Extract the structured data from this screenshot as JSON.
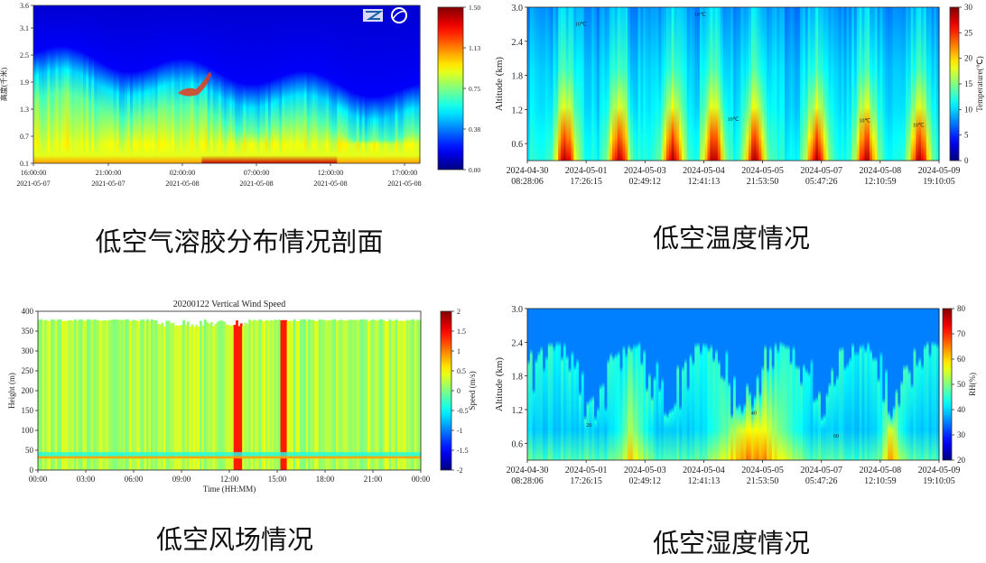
{
  "captions": {
    "aerosol": "低空气溶胶分布情况剖面",
    "temperature": "低空温度情况",
    "wind": "低空风场情况",
    "humidity": "低空湿度情况"
  },
  "chart_data": [
    {
      "id": "aerosol",
      "type": "heatmap",
      "title": "",
      "xlabel": "",
      "ylabel": "高度(千米)",
      "x_ticks": [
        "16:00:00\n2021-05-07",
        "21:00:00\n2021-05-07",
        "02:00:00\n2021-05-08",
        "07:00:00\n2021-05-08",
        "12:00:00\n2021-05-08",
        "17:00:00\n2021-05-08"
      ],
      "y_ticks": [
        "0.1",
        "0.7",
        "1.3",
        "1.9",
        "2.5",
        "3.1",
        "3.6"
      ],
      "ylim": [
        0.1,
        3.6
      ],
      "colorbar_ticks": [
        "0.00",
        "0.38",
        "0.75",
        "1.13",
        "1.50"
      ],
      "colorbar_range": [
        0,
        1.5
      ],
      "colormap": "jet",
      "logo_icon": "institute-logo-icon"
    },
    {
      "id": "temperature",
      "type": "heatmap",
      "title": "",
      "xlabel": "",
      "ylabel": "Altitude (km)",
      "x_ticks": [
        "2024-04-30\n08:28:06",
        "2024-05-01\n17:26:15",
        "2024-05-03\n02:49:12",
        "2024-05-04\n12:41:13",
        "2024-05-05\n21:53:50",
        "2024-05-07\n05:47:26",
        "2024-05-08\n12:10:59",
        "2024-05-09\n19:10:05"
      ],
      "y_ticks": [
        "0.6",
        "1.2",
        "1.8",
        "2.4",
        "3.0"
      ],
      "ylim": [
        0.3,
        3.0
      ],
      "colorbar_label": "Temperature(℃)",
      "colorbar_ticks": [
        "0",
        "5",
        "10",
        "15",
        "20",
        "25",
        "30"
      ],
      "colorbar_range": [
        0,
        30
      ],
      "contour_label": "10℃",
      "colormap": "jet"
    },
    {
      "id": "wind",
      "type": "heatmap",
      "title": "20200122  Vertical Wind Speed",
      "xlabel": "Time (HH:MM)",
      "ylabel": "Height (m)",
      "x_ticks": [
        "00:00",
        "03:00",
        "06:00",
        "09:00",
        "12:00",
        "15:00",
        "18:00",
        "21:00",
        "00:00"
      ],
      "y_ticks": [
        "0",
        "50",
        "100",
        "150",
        "200",
        "250",
        "300",
        "350",
        "400"
      ],
      "ylim": [
        0,
        400
      ],
      "colorbar_label": "Speed (m/s)",
      "colorbar_ticks": [
        "-2",
        "-1.5",
        "-1",
        "-0.5",
        "0",
        "0.5",
        "1",
        "1.5",
        "2"
      ],
      "colorbar_range": [
        -2,
        2
      ],
      "colormap": "jet"
    },
    {
      "id": "humidity",
      "type": "heatmap",
      "title": "",
      "xlabel": "",
      "ylabel": "Altitude (km)",
      "x_ticks": [
        "2024-04-30\n08:28:06",
        "2024-05-01\n17:26:15",
        "2024-05-03\n02:49:12",
        "2024-05-04\n12:41:13",
        "2024-05-05\n21:53:50",
        "2024-05-07\n05:47:26",
        "2024-05-08\n12:10:59",
        "2024-05-09\n19:10:05"
      ],
      "y_ticks": [
        "0.6",
        "1.2",
        "1.8",
        "2.4",
        "3.0"
      ],
      "ylim": [
        0.3,
        3.0
      ],
      "colorbar_label": "RH(%)",
      "colorbar_ticks": [
        "20",
        "30",
        "40",
        "50",
        "60",
        "70",
        "80"
      ],
      "colorbar_range": [
        20,
        80
      ],
      "contour_labels": [
        "20",
        "40",
        "60"
      ],
      "colormap": "jet"
    }
  ]
}
